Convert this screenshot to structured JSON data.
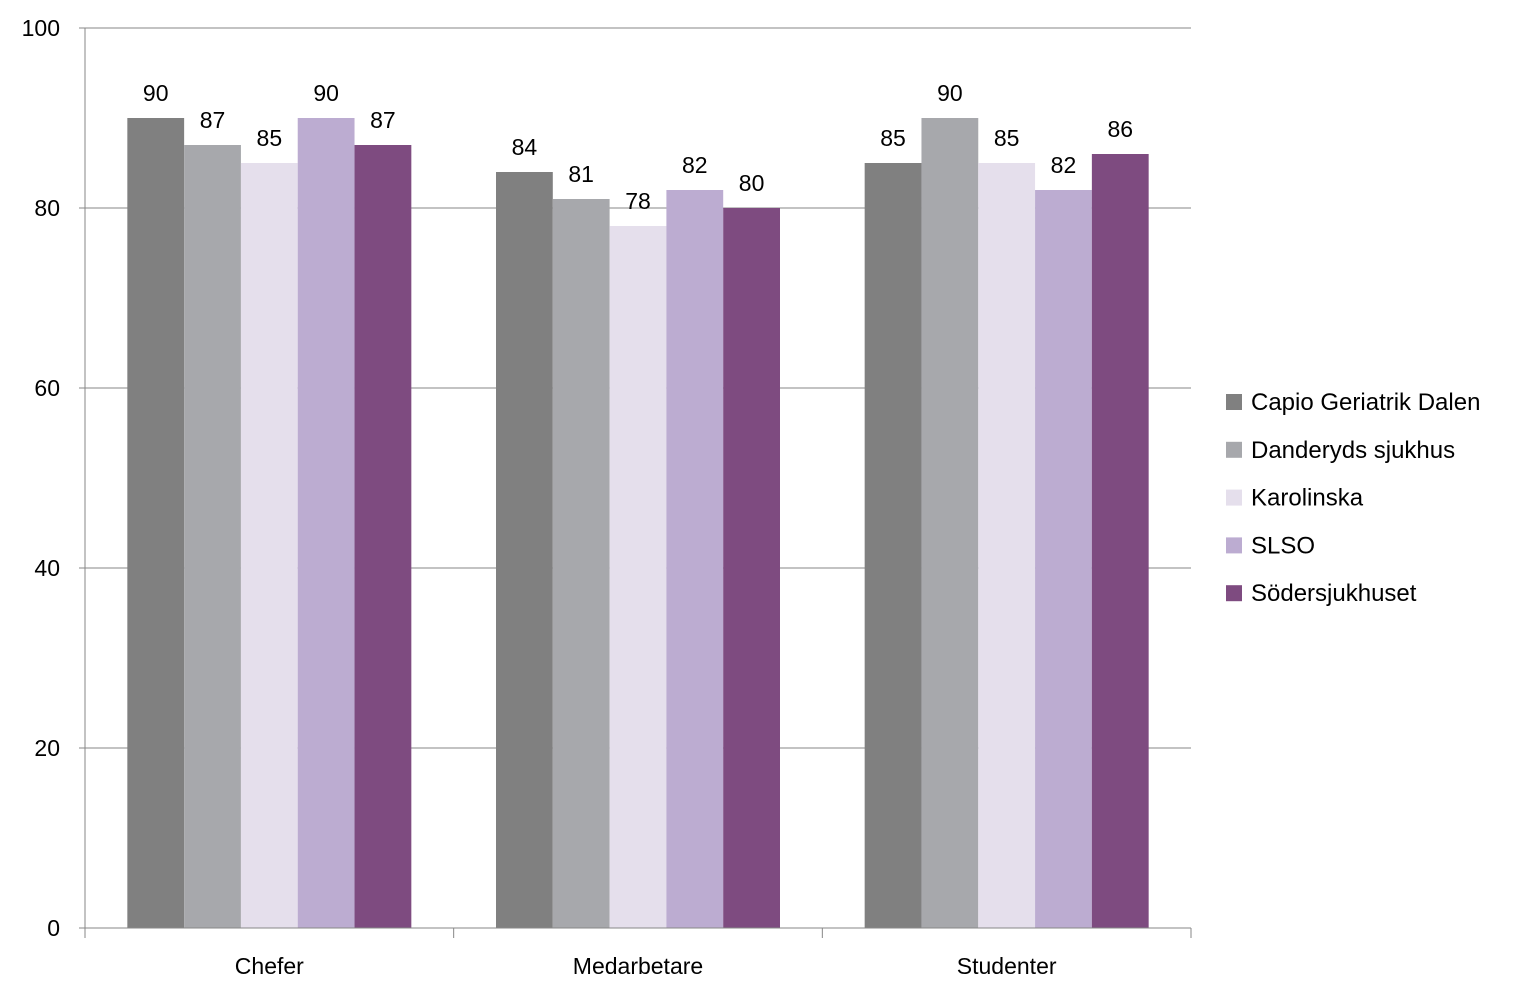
{
  "chart_data": {
    "type": "bar",
    "categories": [
      "Chefer",
      "Medarbetare",
      "Studenter"
    ],
    "series": [
      {
        "name": "Capio Geriatrik Dalen",
        "values": [
          90,
          84,
          85
        ],
        "color": "#808080"
      },
      {
        "name": "Danderyds sjukhus",
        "values": [
          87,
          81,
          90
        ],
        "color": "#a7a8ac"
      },
      {
        "name": "Karolinska",
        "values": [
          85,
          78,
          85
        ],
        "color": "#e5dfec"
      },
      {
        "name": "SLSO",
        "values": [
          90,
          82,
          82
        ],
        "color": "#bcacd1"
      },
      {
        "name": "Södersjukhuset",
        "values": [
          87,
          80,
          86
        ],
        "color": "#7e4b80"
      }
    ],
    "ylim": [
      0,
      100
    ],
    "yticks": [
      0,
      20,
      40,
      60,
      80,
      100
    ],
    "title": "",
    "xlabel": "",
    "ylabel": "",
    "grid": true,
    "legend_position": "right",
    "data_labels": true
  }
}
